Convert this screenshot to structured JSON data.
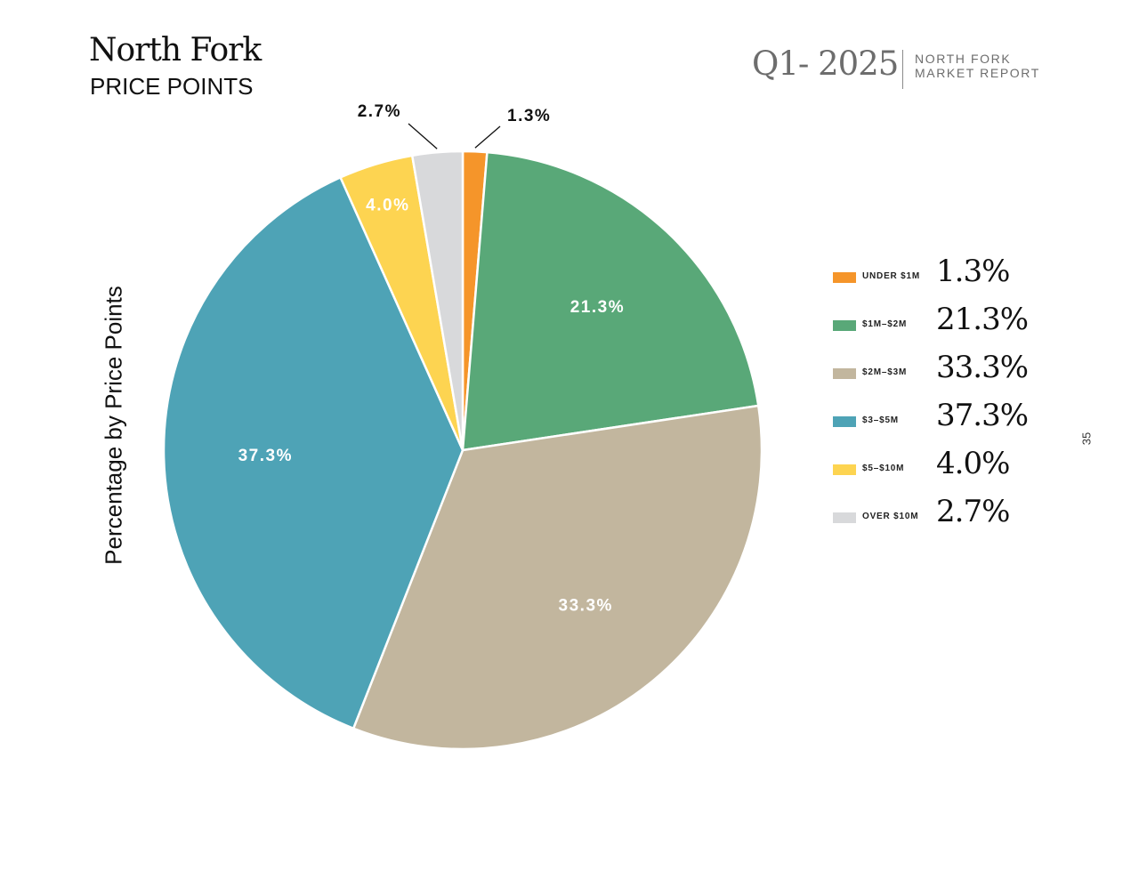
{
  "header": {
    "title": "North Fork",
    "subtitle": "PRICE POINTS",
    "quarter": "Q1- 2025",
    "report_line1": "NORTH FORK",
    "report_line2": "MARKET REPORT"
  },
  "page_number": "35",
  "chart_data": {
    "type": "pie",
    "ylabel": "Percentage by Price Points",
    "categories": [
      "UNDER $1M",
      "$1M–$2M",
      "$2M–$3M",
      "$3–$5M",
      "$5–$10M",
      "OVER $10M"
    ],
    "values": [
      1.3,
      21.3,
      33.3,
      37.3,
      4.0,
      2.7
    ],
    "labels": [
      "1.3%",
      "21.3%",
      "33.3%",
      "37.3%",
      "4.0%",
      "2.7%"
    ],
    "colors": [
      "#f5952a",
      "#59a878",
      "#c2b69e",
      "#4ea3b6",
      "#fdd451",
      "#d8d9db"
    ],
    "label_colors": [
      "#111111",
      "#ffffff",
      "#ffffff",
      "#ffffff",
      "#ffffff",
      "#111111"
    ],
    "outside_labels": [
      true,
      false,
      false,
      false,
      false,
      true
    ]
  }
}
